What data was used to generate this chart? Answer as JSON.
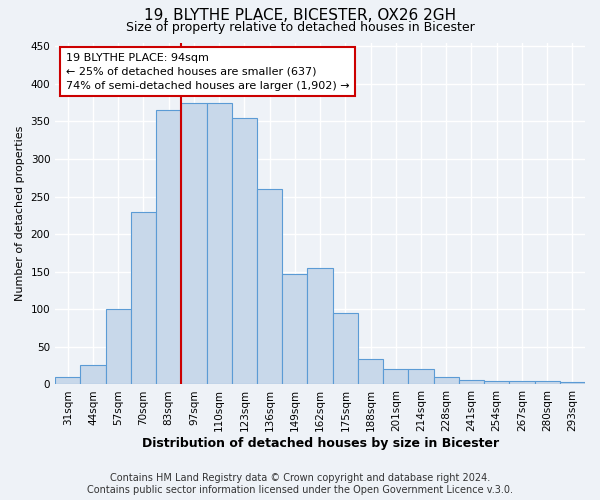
{
  "title": "19, BLYTHE PLACE, BICESTER, OX26 2GH",
  "subtitle": "Size of property relative to detached houses in Bicester",
  "xlabel": "Distribution of detached houses by size in Bicester",
  "ylabel": "Number of detached properties",
  "bar_labels": [
    "31sqm",
    "44sqm",
    "57sqm",
    "70sqm",
    "83sqm",
    "97sqm",
    "110sqm",
    "123sqm",
    "136sqm",
    "149sqm",
    "162sqm",
    "175sqm",
    "188sqm",
    "201sqm",
    "214sqm",
    "228sqm",
    "241sqm",
    "254sqm",
    "267sqm",
    "280sqm",
    "293sqm"
  ],
  "bar_values": [
    10,
    26,
    100,
    230,
    365,
    375,
    375,
    355,
    260,
    147,
    155,
    95,
    34,
    21,
    21,
    10,
    6,
    4,
    4,
    4,
    3
  ],
  "bar_color": "#c8d8ea",
  "bar_edge_color": "#5b9bd5",
  "vline_x_index": 4,
  "vline_x_offset": 0.5,
  "vline_color": "#cc0000",
  "annotation_text": "19 BLYTHE PLACE: 94sqm\n← 25% of detached houses are smaller (637)\n74% of semi-detached houses are larger (1,902) →",
  "annotation_box_edgecolor": "#cc0000",
  "annotation_box_facecolor": "#ffffff",
  "ylim": [
    0,
    455
  ],
  "yticks": [
    0,
    50,
    100,
    150,
    200,
    250,
    300,
    350,
    400,
    450
  ],
  "footer_line1": "Contains HM Land Registry data © Crown copyright and database right 2024.",
  "footer_line2": "Contains public sector information licensed under the Open Government Licence v.3.0.",
  "background_color": "#eef2f7",
  "grid_color": "#ffffff",
  "title_fontsize": 11,
  "subtitle_fontsize": 9,
  "xlabel_fontsize": 9,
  "ylabel_fontsize": 8,
  "tick_fontsize": 7.5,
  "annot_fontsize": 8,
  "footer_fontsize": 7
}
